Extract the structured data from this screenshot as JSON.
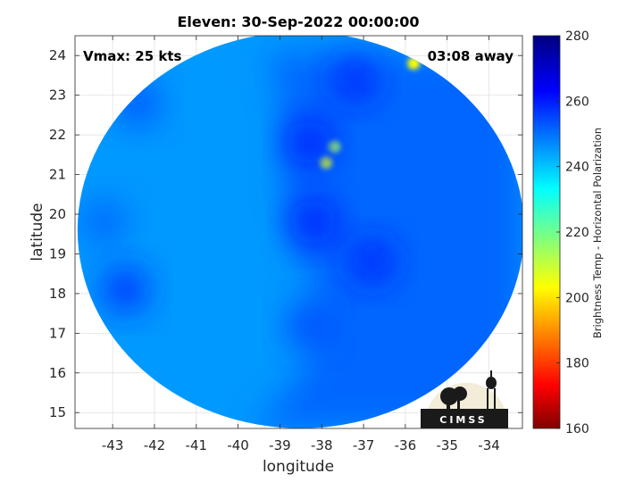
{
  "chart_data": {
    "type": "heatmap",
    "title": "Eleven: 30-Sep-2022 00:00:00",
    "xlabel": "longitude",
    "ylabel": "latitude",
    "xlim": [
      -43.9,
      -33.2
    ],
    "ylim": [
      14.6,
      24.5
    ],
    "xticks": [
      -43,
      -42,
      -41,
      -40,
      -39,
      -38,
      -37,
      -36,
      -35,
      -34
    ],
    "yticks": [
      15,
      16,
      17,
      18,
      19,
      20,
      21,
      22,
      23,
      24
    ],
    "grid": true,
    "annotations": {
      "left": "Vmax: 25 kts",
      "right": "03:08 away"
    },
    "colorbar": {
      "label": "Brightness Temp - Horizontal Polarization",
      "range": [
        160,
        280
      ],
      "ticks": [
        160,
        180,
        200,
        220,
        240,
        260,
        280
      ],
      "colormap": "jet"
    },
    "swath": {
      "center_lon": -38.5,
      "center_lat": 19.6,
      "background_value": 247,
      "features": [
        {
          "lon": -37.7,
          "lat": 21.7,
          "value": 218
        },
        {
          "lon": -37.9,
          "lat": 21.3,
          "value": 212
        },
        {
          "lon": -35.8,
          "lat": 23.8,
          "value": 205
        },
        {
          "lon": -38.3,
          "lat": 21.8,
          "value": 264
        },
        {
          "lon": -38.2,
          "lat": 19.8,
          "value": 263
        },
        {
          "lon": -36.8,
          "lat": 18.8,
          "value": 262
        },
        {
          "lon": -38.3,
          "lat": 17.2,
          "value": 258
        },
        {
          "lon": -42.7,
          "lat": 18.1,
          "value": 261
        },
        {
          "lon": -42.4,
          "lat": 22.8,
          "value": 256
        },
        {
          "lon": -43.2,
          "lat": 19.8,
          "value": 254
        },
        {
          "lon": -37.2,
          "lat": 23.4,
          "value": 262
        }
      ]
    },
    "logo_text": "CIMSS"
  }
}
